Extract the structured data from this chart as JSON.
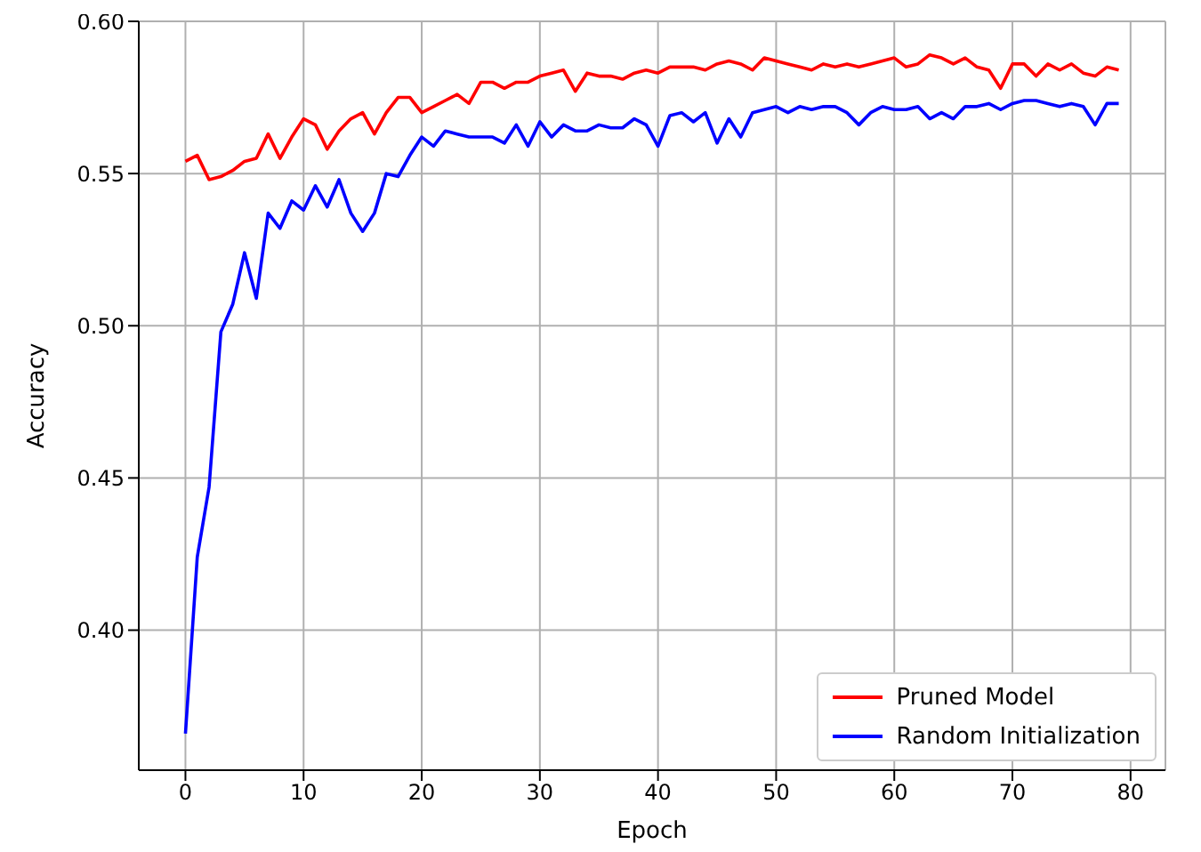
{
  "chart_data": {
    "type": "line",
    "xlabel": "Epoch",
    "ylabel": "Accuracy",
    "x": [
      0,
      1,
      2,
      3,
      4,
      5,
      6,
      7,
      8,
      9,
      10,
      11,
      12,
      13,
      14,
      15,
      16,
      17,
      18,
      19,
      20,
      21,
      22,
      23,
      24,
      25,
      26,
      27,
      28,
      29,
      30,
      31,
      32,
      33,
      34,
      35,
      36,
      37,
      38,
      39,
      40,
      41,
      42,
      43,
      44,
      45,
      46,
      47,
      48,
      49,
      50,
      51,
      52,
      53,
      54,
      55,
      56,
      57,
      58,
      59,
      60,
      61,
      62,
      63,
      64,
      65,
      66,
      67,
      68,
      69,
      70,
      71,
      72,
      73,
      74,
      75,
      76,
      77,
      78,
      79
    ],
    "series": [
      {
        "name": "Pruned Model",
        "color": "#ff0000",
        "values": [
          0.554,
          0.556,
          0.548,
          0.549,
          0.551,
          0.554,
          0.555,
          0.563,
          0.555,
          0.562,
          0.568,
          0.566,
          0.558,
          0.564,
          0.568,
          0.57,
          0.563,
          0.57,
          0.575,
          0.575,
          0.57,
          0.572,
          0.574,
          0.576,
          0.573,
          0.58,
          0.58,
          0.578,
          0.58,
          0.58,
          0.582,
          0.583,
          0.584,
          0.577,
          0.583,
          0.582,
          0.582,
          0.581,
          0.583,
          0.584,
          0.583,
          0.585,
          0.585,
          0.585,
          0.584,
          0.586,
          0.587,
          0.586,
          0.584,
          0.588,
          0.587,
          0.586,
          0.585,
          0.584,
          0.586,
          0.585,
          0.586,
          0.585,
          0.586,
          0.587,
          0.588,
          0.585,
          0.586,
          0.589,
          0.588,
          0.586,
          0.588,
          0.585,
          0.584,
          0.578,
          0.586,
          0.586,
          0.582,
          0.586,
          0.584,
          0.586,
          0.583,
          0.582,
          0.585,
          0.584
        ]
      },
      {
        "name": "Random Initialization",
        "color": "#0000ff",
        "values": [
          0.366,
          0.424,
          0.447,
          0.498,
          0.507,
          0.524,
          0.509,
          0.537,
          0.532,
          0.541,
          0.538,
          0.546,
          0.539,
          0.548,
          0.537,
          0.531,
          0.537,
          0.55,
          0.549,
          0.556,
          0.562,
          0.559,
          0.564,
          0.563,
          0.562,
          0.562,
          0.562,
          0.56,
          0.566,
          0.559,
          0.567,
          0.562,
          0.566,
          0.564,
          0.564,
          0.566,
          0.565,
          0.565,
          0.568,
          0.566,
          0.559,
          0.569,
          0.57,
          0.567,
          0.57,
          0.56,
          0.568,
          0.562,
          0.57,
          0.571,
          0.572,
          0.57,
          0.572,
          0.571,
          0.572,
          0.572,
          0.57,
          0.566,
          0.57,
          0.572,
          0.571,
          0.571,
          0.572,
          0.568,
          0.57,
          0.568,
          0.572,
          0.572,
          0.573,
          0.571,
          0.573,
          0.574,
          0.574,
          0.573,
          0.572,
          0.573,
          0.572,
          0.566,
          0.573,
          0.573
        ]
      }
    ],
    "xlim": [
      -3.95,
      82.95
    ],
    "xticks": [
      0,
      10,
      20,
      30,
      40,
      50,
      60,
      70,
      80
    ],
    "ylim": [
      0.354,
      0.6
    ],
    "yticks": [
      {
        "value": 0.4,
        "label": "0.40"
      },
      {
        "value": 0.45,
        "label": "0.45"
      },
      {
        "value": 0.5,
        "label": "0.50"
      },
      {
        "value": 0.55,
        "label": "0.55"
      },
      {
        "value": 0.6,
        "label": "0.60"
      }
    ],
    "grid": true,
    "legend": "bottom right",
    "marker": "none",
    "line_style": "solid"
  }
}
